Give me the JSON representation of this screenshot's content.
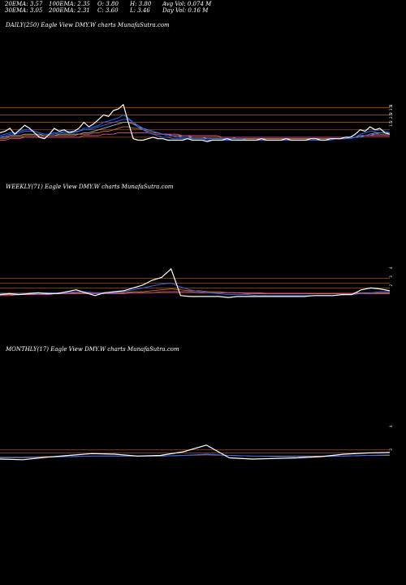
{
  "header_stats": {
    "ema20": "20EMA: 3.57",
    "ema30": "30EMA: 3.05",
    "ema100": "100EMA: 2.35",
    "ema200": "200EMA: 2.31",
    "open": "O: 3.80",
    "close": "C: 3.60",
    "high": "H: 3.80",
    "low": "L: 3.46",
    "avg_vol": "Avg Vol: 0.074  M",
    "day_vol": "Day Vol: 0.16  M"
  },
  "colors": {
    "background": "#000000",
    "price": "#ffffff",
    "ema_blue": "#2f6bff",
    "ema_pink": "#e0509f",
    "ema_orange": "#c8742c",
    "ema_gray": "#b0b0b0",
    "grid": "#a0520f"
  },
  "chart_data": [
    {
      "type": "line",
      "title": "DAILY(250) Eagle   View  DMY.W charts MunafaSutra.com",
      "right_tick_labels": [
        "4",
        "3.5",
        "3",
        "2.5",
        "2",
        "1.5"
      ],
      "series": [
        {
          "name": "Price",
          "color": "#ffffff",
          "values": [
            2.3,
            2.4,
            2.6,
            2.2,
            2.5,
            2.8,
            2.6,
            2.3,
            2.0,
            1.9,
            2.2,
            2.6,
            2.4,
            2.5,
            2.3,
            2.4,
            2.6,
            3.0,
            2.7,
            2.9,
            3.2,
            3.5,
            3.4,
            3.8,
            3.9,
            4.2,
            3.0,
            1.9,
            1.8,
            1.8,
            1.9,
            2.0,
            1.9,
            1.9,
            1.8,
            1.8,
            1.8,
            1.8,
            1.9,
            1.8,
            1.8,
            1.8,
            1.7,
            1.8,
            1.8,
            1.8,
            1.9,
            1.8,
            1.8,
            1.8,
            1.8,
            1.8,
            1.8,
            1.9,
            1.8,
            1.8,
            1.8,
            1.8,
            1.9,
            1.8,
            1.8,
            1.8,
            1.8,
            1.9,
            1.9,
            1.8,
            1.8,
            1.9,
            1.9,
            1.9,
            2.0,
            2.0,
            2.2,
            2.5,
            2.4,
            2.7,
            2.5,
            2.6,
            2.3,
            2.2
          ]
        },
        {
          "name": "",
          "color": "#2f6bff",
          "values": [
            2.1,
            2.2,
            2.3,
            2.3,
            2.4,
            2.5,
            2.5,
            2.4,
            2.3,
            2.2,
            2.2,
            2.3,
            2.3,
            2.4,
            2.4,
            2.4,
            2.4,
            2.6,
            2.6,
            2.7,
            2.8,
            3.0,
            3.1,
            3.2,
            3.3,
            3.5,
            3.3,
            3.0,
            2.7,
            2.5,
            2.3,
            2.2,
            2.1,
            2.0,
            2.0,
            1.9,
            1.9,
            1.9,
            1.9,
            1.9,
            1.9,
            1.9,
            1.8,
            1.8,
            1.8,
            1.8,
            1.8,
            1.8,
            1.8,
            1.8,
            1.8,
            1.8,
            1.8,
            1.8,
            1.8,
            1.8,
            1.8,
            1.8,
            1.8,
            1.8,
            1.8,
            1.8,
            1.8,
            1.8,
            1.8,
            1.8,
            1.8,
            1.9,
            1.9,
            1.9,
            1.9,
            2.0,
            2.0,
            2.2,
            2.3,
            2.4,
            2.4,
            2.5,
            2.4,
            2.3
          ]
        },
        {
          "name": "",
          "color": "#2f6bff",
          "values": [
            2.0,
            2.1,
            2.2,
            2.2,
            2.3,
            2.4,
            2.4,
            2.4,
            2.3,
            2.2,
            2.2,
            2.2,
            2.3,
            2.3,
            2.3,
            2.3,
            2.4,
            2.5,
            2.5,
            2.6,
            2.7,
            2.8,
            2.9,
            3.0,
            3.1,
            3.2,
            3.2,
            3.0,
            2.8,
            2.6,
            2.5,
            2.4,
            2.3,
            2.2,
            2.1,
            2.1,
            2.0,
            2.0,
            2.0,
            1.9,
            1.9,
            1.9,
            1.9,
            1.9,
            1.9,
            1.9,
            1.9,
            1.9,
            1.9,
            1.9,
            1.8,
            1.8,
            1.8,
            1.8,
            1.8,
            1.8,
            1.8,
            1.8,
            1.8,
            1.8,
            1.8,
            1.8,
            1.8,
            1.8,
            1.8,
            1.8,
            1.8,
            1.8,
            1.9,
            1.9,
            1.9,
            1.9,
            2.0,
            2.0,
            2.1,
            2.2,
            2.2,
            2.3,
            2.3,
            2.3
          ]
        },
        {
          "name": "",
          "color": "#e0509f",
          "values": [
            1.8,
            1.8,
            1.9,
            1.9,
            1.9,
            2.0,
            2.0,
            2.0,
            2.0,
            2.0,
            2.0,
            2.0,
            2.0,
            2.0,
            2.0,
            2.0,
            2.0,
            2.1,
            2.1,
            2.1,
            2.1,
            2.2,
            2.2,
            2.2,
            2.3,
            2.3,
            2.3,
            2.3,
            2.3,
            2.3,
            2.3,
            2.2,
            2.2,
            2.2,
            2.2,
            2.2,
            2.2,
            2.1,
            2.1,
            2.1,
            2.1,
            2.1,
            2.1,
            2.1,
            2.1,
            2.0,
            2.0,
            2.0,
            2.0,
            2.0,
            2.0,
            2.0,
            2.0,
            2.0,
            2.0,
            2.0,
            2.0,
            2.0,
            2.0,
            2.0,
            2.0,
            2.0,
            2.0,
            2.0,
            2.0,
            2.0,
            2.0,
            2.0,
            2.0,
            2.0,
            2.0,
            2.0,
            2.0,
            2.0,
            2.1,
            2.1,
            2.1,
            2.1,
            2.1,
            2.1
          ]
        },
        {
          "name": "",
          "color": "#c8742c",
          "values": [
            1.9,
            1.9,
            2.0,
            2.0,
            2.0,
            2.1,
            2.1,
            2.1,
            2.1,
            2.1,
            2.1,
            2.1,
            2.1,
            2.1,
            2.1,
            2.1,
            2.2,
            2.2,
            2.2,
            2.3,
            2.3,
            2.4,
            2.4,
            2.5,
            2.6,
            2.7,
            2.7,
            2.6,
            2.6,
            2.5,
            2.4,
            2.3,
            2.3,
            2.2,
            2.2,
            2.1,
            2.1,
            2.1,
            2.1,
            2.0,
            2.0,
            2.0,
            2.0,
            2.0,
            2.0,
            2.0,
            2.0,
            2.0,
            1.9,
            1.9,
            1.9,
            1.9,
            1.9,
            1.9,
            1.9,
            1.9,
            1.9,
            1.9,
            1.9,
            1.9,
            1.9,
            1.9,
            1.9,
            1.9,
            1.9,
            1.9,
            1.9,
            1.9,
            1.9,
            1.9,
            1.9,
            2.0,
            2.0,
            2.0,
            2.1,
            2.1,
            2.2,
            2.2,
            2.2,
            2.2
          ]
        },
        {
          "name": "",
          "color": "#b0b0b0",
          "values": [
            2.0,
            2.0,
            2.1,
            2.1,
            2.1,
            2.2,
            2.2,
            2.2,
            2.2,
            2.1,
            2.1,
            2.1,
            2.2,
            2.2,
            2.2,
            2.2,
            2.2,
            2.3,
            2.3,
            2.4,
            2.5,
            2.6,
            2.7,
            2.8,
            2.9,
            3.0,
            3.0,
            2.9,
            2.7,
            2.6,
            2.5,
            2.4,
            2.3,
            2.2,
            2.2,
            2.1,
            2.1,
            2.0,
            2.0,
            2.0,
            2.0,
            2.0,
            1.9,
            1.9,
            1.9,
            1.9,
            1.9,
            1.9,
            1.9,
            1.9,
            1.9,
            1.9,
            1.9,
            1.9,
            1.9,
            1.9,
            1.9,
            1.9,
            1.9,
            1.9,
            1.9,
            1.9,
            1.9,
            1.9,
            1.9,
            1.9,
            1.9,
            1.9,
            1.9,
            1.9,
            1.9,
            2.0,
            2.0,
            2.1,
            2.1,
            2.2,
            2.3,
            2.3,
            2.3,
            2.3
          ]
        }
      ],
      "ylim": [
        1.5,
        4.4
      ],
      "gridlines": [
        4.0,
        3.5,
        3.0,
        2.5,
        2.0
      ]
    },
    {
      "type": "line",
      "title": "WEEKLY(71) Eagle   View  DMY.W charts MunafaSutra.com",
      "right_tick_labels": [
        "4",
        "3",
        "2"
      ],
      "series": [
        {
          "name": "Price",
          "color": "#ffffff",
          "values": [
            1.8,
            1.9,
            1.8,
            1.9,
            2.0,
            1.9,
            1.9,
            2.1,
            2.3,
            2.0,
            1.7,
            2.0,
            2.1,
            2.2,
            2.5,
            2.8,
            3.3,
            3.6,
            4.5,
            1.7,
            1.6,
            1.6,
            1.6,
            1.6,
            1.5,
            1.6,
            1.6,
            1.6,
            1.6,
            1.6,
            1.6,
            1.6,
            1.6,
            1.7,
            1.7,
            1.7,
            1.8,
            1.8,
            2.3,
            2.5,
            2.4,
            2.2
          ]
        },
        {
          "name": "",
          "color": "#2f6bff",
          "values": [
            1.9,
            1.9,
            1.9,
            1.9,
            1.9,
            2.0,
            2.0,
            2.0,
            2.1,
            2.1,
            2.0,
            2.0,
            2.0,
            2.1,
            2.3,
            2.5,
            2.7,
            2.9,
            3.0,
            2.6,
            2.3,
            2.1,
            2.0,
            1.9,
            1.8,
            1.8,
            1.8,
            1.7,
            1.7,
            1.7,
            1.7,
            1.7,
            1.7,
            1.7,
            1.7,
            1.7,
            1.8,
            1.8,
            1.9,
            2.0,
            2.1,
            2.1
          ]
        },
        {
          "name": "",
          "color": "#e0509f",
          "values": [
            1.7,
            1.7,
            1.8,
            1.8,
            1.8,
            1.8,
            1.9,
            1.9,
            1.9,
            1.9,
            1.9,
            1.9,
            1.9,
            1.9,
            2.0,
            2.0,
            2.0,
            2.1,
            2.1,
            2.1,
            2.1,
            2.0,
            2.0,
            2.0,
            2.0,
            2.0,
            1.9,
            1.9,
            1.9,
            1.9,
            1.9,
            1.9,
            1.9,
            1.9,
            1.9,
            1.9,
            1.9,
            1.9,
            1.9,
            1.9,
            1.9,
            1.9
          ]
        },
        {
          "name": "",
          "color": "#c8742c",
          "values": [
            1.8,
            1.8,
            1.8,
            1.8,
            1.9,
            1.9,
            1.9,
            1.9,
            2.0,
            2.0,
            2.0,
            2.0,
            2.0,
            2.0,
            2.1,
            2.1,
            2.2,
            2.3,
            2.4,
            2.3,
            2.2,
            2.2,
            2.1,
            2.1,
            2.0,
            2.0,
            2.0,
            2.0,
            1.9,
            1.9,
            1.9,
            1.9,
            1.9,
            1.9,
            1.9,
            1.9,
            1.9,
            1.9,
            2.0,
            2.0,
            2.0,
            2.0
          ]
        }
      ],
      "ylim": [
        1.0,
        5.0
      ],
      "gridlines": [
        3.5,
        3.0,
        2.5,
        2.0
      ]
    },
    {
      "type": "line",
      "title": "MONTHLY(17) Eagle   View  DMY.W charts MunafaSutra.com",
      "right_tick_labels": [
        "4",
        "3"
      ],
      "series": [
        {
          "name": "Price",
          "color": "#ffffff",
          "values": [
            2.0,
            1.9,
            2.3,
            2.6,
            2.9,
            2.8,
            2.5,
            2.6,
            3.2,
            4.3,
            2.2,
            2.0,
            2.1,
            2.2,
            2.4,
            2.8,
            3.0,
            3.1
          ]
        },
        {
          "name": "",
          "color": "#2f6bff",
          "values": [
            2.2,
            2.2,
            2.3,
            2.4,
            2.5,
            2.5,
            2.5,
            2.5,
            2.6,
            2.8,
            2.6,
            2.5,
            2.4,
            2.4,
            2.4,
            2.5,
            2.6,
            2.7
          ]
        },
        {
          "name": "",
          "color": "#c8742c",
          "values": [
            2.3,
            2.3,
            2.4,
            2.4,
            2.5,
            2.5,
            2.5,
            2.5,
            2.6,
            2.7,
            2.6,
            2.5,
            2.5,
            2.5,
            2.5,
            2.5,
            2.6,
            2.6
          ]
        }
      ],
      "ylim": [
        0.0,
        8.0
      ],
      "gridlines": [
        3.5,
        3.0
      ]
    }
  ]
}
